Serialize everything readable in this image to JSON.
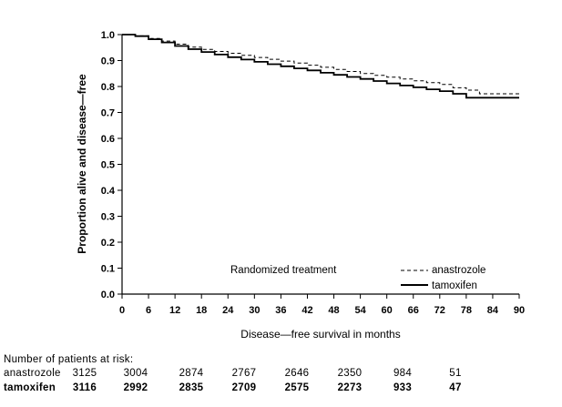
{
  "chart_data": {
    "type": "line",
    "xlabel": "Disease—free survival in months",
    "ylabel": "Proportion alive and disease—free",
    "xlim": [
      0,
      90
    ],
    "ylim": [
      0.0,
      1.0
    ],
    "x_ticks": [
      "0",
      "6",
      "12",
      "18",
      "24",
      "30",
      "36",
      "42",
      "48",
      "54",
      "60",
      "66",
      "72",
      "78",
      "84",
      "90"
    ],
    "y_ticks": [
      "0.0",
      "0.1",
      "0.2",
      "0.3",
      "0.4",
      "0.5",
      "0.6",
      "0.7",
      "0.8",
      "0.9",
      "1.0"
    ],
    "grid": false,
    "legend": {
      "title": "Randomized treatment",
      "position": "bottom-right"
    },
    "series": [
      {
        "name": "anastrozole",
        "style": "dashed",
        "x": [
          0,
          3,
          6,
          9,
          12,
          15,
          18,
          21,
          24,
          27,
          30,
          33,
          36,
          39,
          42,
          45,
          48,
          51,
          54,
          57,
          60,
          63,
          66,
          69,
          72,
          75,
          78,
          81,
          84,
          87,
          90
        ],
        "y": [
          1.0,
          0.995,
          0.985,
          0.975,
          0.963,
          0.952,
          0.943,
          0.935,
          0.928,
          0.92,
          0.912,
          0.905,
          0.898,
          0.89,
          0.882,
          0.874,
          0.866,
          0.858,
          0.85,
          0.843,
          0.836,
          0.829,
          0.822,
          0.815,
          0.808,
          0.795,
          0.786,
          0.772,
          0.772,
          0.772,
          0.772
        ]
      },
      {
        "name": "tamoxifen",
        "style": "solid",
        "x": [
          0,
          3,
          6,
          9,
          12,
          15,
          18,
          21,
          24,
          27,
          30,
          33,
          36,
          39,
          42,
          45,
          48,
          51,
          54,
          57,
          60,
          63,
          66,
          69,
          72,
          75,
          78,
          81,
          84,
          87,
          90
        ],
        "y": [
          1.0,
          0.994,
          0.982,
          0.97,
          0.956,
          0.944,
          0.933,
          0.923,
          0.913,
          0.904,
          0.895,
          0.886,
          0.878,
          0.87,
          0.862,
          0.853,
          0.845,
          0.837,
          0.829,
          0.821,
          0.812,
          0.804,
          0.797,
          0.789,
          0.782,
          0.772,
          0.757,
          0.757,
          0.757,
          0.757,
          0.757
        ]
      }
    ]
  },
  "risk_table": {
    "title": "Number of patients at risk:",
    "rows": [
      {
        "label": "anastrozole",
        "values": [
          "3125",
          "3004",
          "2874",
          "2767",
          "2646",
          "2350",
          "984",
          "51"
        ]
      },
      {
        "label": "tamoxifen",
        "values": [
          "3116",
          "2992",
          "2835",
          "2709",
          "2575",
          "2273",
          "933",
          "47"
        ]
      }
    ]
  }
}
